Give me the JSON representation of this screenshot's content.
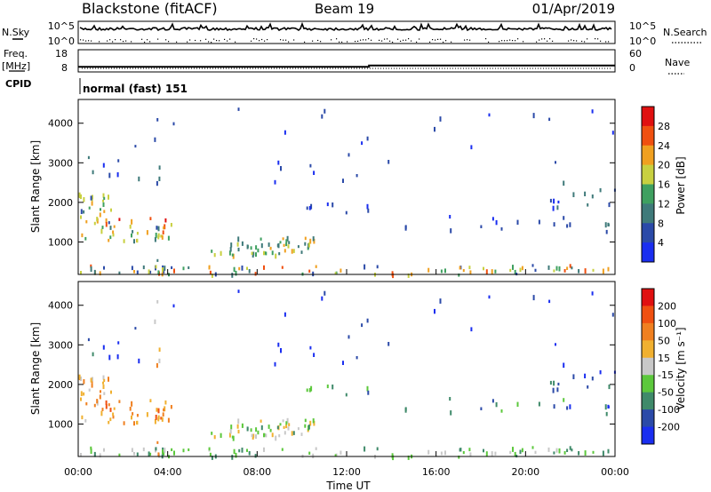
{
  "header": {
    "station": "Blackstone (fitACF)",
    "beam": "Beam 19",
    "date": "01/Apr/2019"
  },
  "left_labels": {
    "n_sky": "N.Sky",
    "freq": "Freq.",
    "freq_unit": "[MHz]",
    "cpid": "CPID"
  },
  "right_labels": {
    "n_search": "N.Search",
    "nave": "Nave"
  },
  "cpid_text": "normal (fast) 151",
  "colors": {
    "power_scale": [
      "#1a2ef0",
      "#2b4aa8",
      "#3f7a7a",
      "#3fa060",
      "#c8d040",
      "#f0a020",
      "#f05010",
      "#e01010"
    ],
    "velocity_scale": [
      "#e01010",
      "#f05010",
      "#f08020",
      "#f0b030",
      "#c8c8c8",
      "#5cc83c",
      "#3f8a6a",
      "#2b4aa8",
      "#1a2ef0"
    ]
  },
  "chart_data": [
    {
      "type": "line",
      "panel": "N.Sky / N.Search",
      "y_tick_labels": [
        "10^5",
        "10^0"
      ],
      "y_tick_labels_right": [
        "10^5",
        "10^0"
      ]
    },
    {
      "type": "line",
      "panel": "Freq / Nave",
      "y_tick_labels": [
        "18",
        "8"
      ],
      "y_tick_labels_right": [
        "60",
        "0"
      ],
      "series": [
        {
          "name": "Freq.",
          "x": [
            "00:00",
            "13:00",
            "13:00",
            "24:00"
          ],
          "values": [
            10.3,
            10.3,
            10.9,
            10.9
          ]
        }
      ]
    },
    {
      "type": "heatmap",
      "panel": "Power",
      "ylabel": "Slant Range [km]",
      "ylim": [
        180,
        4600
      ],
      "y_ticks": [
        1000,
        2000,
        3000,
        4000
      ],
      "colorbar_label": "Power [dB]",
      "colorbar_ticks": [
        "4",
        "8",
        "12",
        "16",
        "20",
        "24",
        "28"
      ],
      "range": [
        0,
        32
      ]
    },
    {
      "type": "heatmap",
      "panel": "Velocity",
      "xlabel": "Time UT",
      "ylabel": "Slant Range [km]",
      "ylim": [
        180,
        4600
      ],
      "y_ticks": [
        1000,
        2000,
        3000,
        4000
      ],
      "x_tick_labels": [
        "00:00",
        "04:00",
        "08:00",
        "12:00",
        "16:00",
        "20:00",
        "00:00"
      ],
      "colorbar_label": "Velocity [m s⁻¹]",
      "colorbar_ticks": [
        "200",
        "100",
        "50",
        "15",
        "-15",
        "-50",
        "-100",
        "-200"
      ],
      "range": [
        -250,
        250
      ]
    }
  ]
}
